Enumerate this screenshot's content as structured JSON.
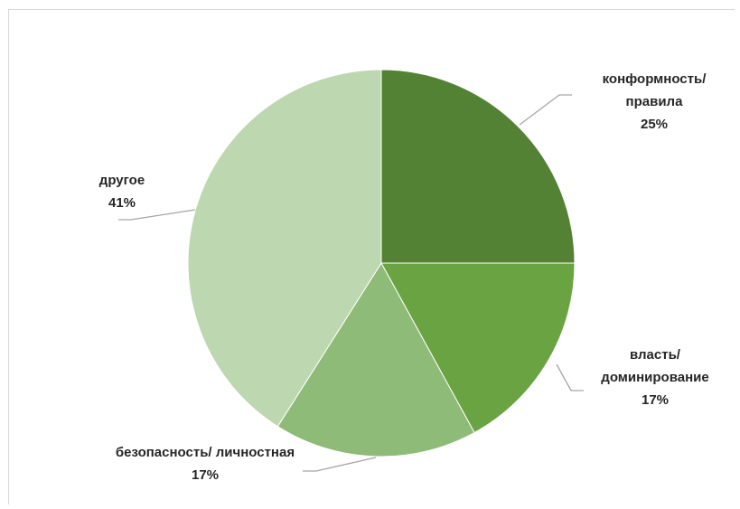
{
  "chart_data": {
    "type": "pie",
    "title": "",
    "start_angle_deg": 0,
    "direction": "clockwise",
    "slices": [
      {
        "label_lines": [
          "конформность/",
          "правила"
        ],
        "percent_label": "25%",
        "value": 25,
        "color": "#548235"
      },
      {
        "label_lines": [
          "власть/",
          "доминирование"
        ],
        "percent_label": "17%",
        "value": 17,
        "color": "#6aa342"
      },
      {
        "label_lines": [
          "безопасность/ личностная"
        ],
        "percent_label": "17%",
        "value": 17,
        "color": "#8fbb78"
      },
      {
        "label_lines": [
          "другое"
        ],
        "percent_label": "41%",
        "value": 41,
        "color": "#bdd7b0"
      }
    ],
    "legend": "none",
    "leader_line_color": "#a6a6a6"
  }
}
